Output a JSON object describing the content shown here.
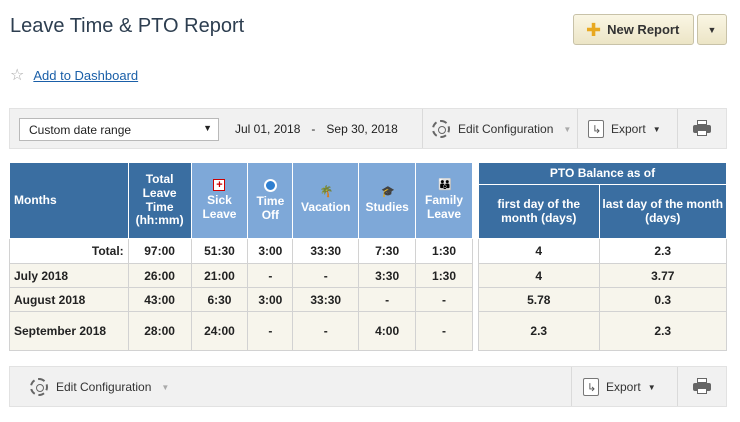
{
  "page": {
    "title": "Leave Time & PTO Report"
  },
  "actions": {
    "new_report": "New Report"
  },
  "favorite": {
    "label": "Add to Dashboard"
  },
  "toolbar": {
    "date_select": "Custom date range",
    "date_from": "Jul 01, 2018",
    "date_dash": "-",
    "date_to": "Sep 30, 2018",
    "edit_configuration": "Edit Configuration",
    "export": "Export"
  },
  "table": {
    "headers": {
      "months": "Months",
      "total": "Total Leave Time (hh:mm)",
      "sick": "Sick Leave",
      "timeoff": "Time Off",
      "vacation": "Vacation",
      "studies": "Studies",
      "family": "Family Leave"
    },
    "rows": [
      {
        "month": "Total:",
        "total": "97:00",
        "sick": "51:30",
        "timeoff": "3:00",
        "vacation": "33:30",
        "studies": "7:30",
        "family": "1:30"
      },
      {
        "month": "July 2018",
        "total": "26:00",
        "sick": "21:00",
        "timeoff": "-",
        "vacation": "-",
        "studies": "3:30",
        "family": "1:30"
      },
      {
        "month": "August 2018",
        "total": "43:00",
        "sick": "6:30",
        "timeoff": "3:00",
        "vacation": "33:30",
        "studies": "-",
        "family": "-"
      },
      {
        "month": "September 2018",
        "total": "28:00",
        "sick": "24:00",
        "timeoff": "-",
        "vacation": "-",
        "studies": "4:00",
        "family": "-"
      }
    ]
  },
  "pto": {
    "header": "PTO Balance as of",
    "col_first": "first day of the month (days)",
    "col_last": "last day of the month (days)",
    "rows": [
      {
        "first": "4",
        "last": "2.3"
      },
      {
        "first": "4",
        "last": "3.77"
      },
      {
        "first": "5.78",
        "last": "0.3"
      },
      {
        "first": "2.3",
        "last": "2.3"
      }
    ]
  },
  "colors": {
    "header_dark": "#3a6ea1",
    "header_light": "#7ea8d8",
    "link": "#1a5fa8",
    "button_bg": "#ece5c6"
  },
  "icons": {
    "sick": "first-aid-icon",
    "timeoff": "no-entry-icon",
    "vacation": "palm-tree-icon",
    "studies": "graduation-cap-icon",
    "family": "family-icon"
  }
}
